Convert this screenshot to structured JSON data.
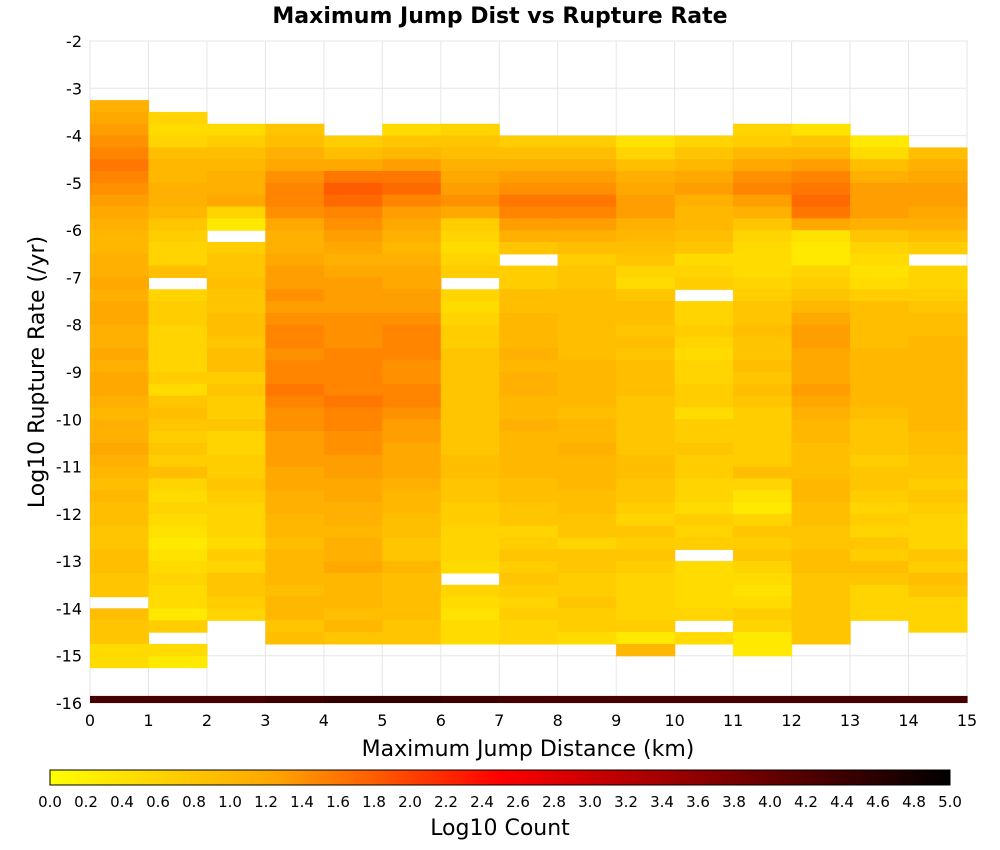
{
  "chart_data": {
    "type": "heatmap",
    "title": "Maximum Jump Dist vs Rupture Rate",
    "xlabel": "Maximum Jump Distance (km)",
    "ylabel": "Log10 Rupture Rate (/yr)",
    "colorbar_label": "Log10 Count",
    "xlim": [
      0,
      15
    ],
    "ylim": [
      -16,
      -2
    ],
    "x_ticks": [
      "0",
      "1",
      "2",
      "3",
      "4",
      "5",
      "6",
      "7",
      "8",
      "9",
      "10",
      "11",
      "12",
      "13",
      "14",
      "15"
    ],
    "y_ticks": [
      "-16",
      "-15",
      "-14",
      "-13",
      "-12",
      "-11",
      "-10",
      "-9",
      "-8",
      "-7",
      "-6",
      "-5",
      "-4",
      "-3",
      "-2"
    ],
    "colorbar_range": [
      0,
      5
    ],
    "colorbar_ticks": [
      "0.0",
      "0.2",
      "0.4",
      "0.6",
      "0.8",
      "1.0",
      "1.2",
      "1.4",
      "1.6",
      "1.8",
      "2.0",
      "2.2",
      "2.4",
      "2.6",
      "2.8",
      "3.0",
      "3.2",
      "3.4",
      "3.6",
      "3.8",
      "4.0",
      "4.2",
      "4.4",
      "4.6",
      "4.8",
      "5.0"
    ],
    "colormap": [
      "#ffff00",
      "#ffa500",
      "#ff0000",
      "#7f0000",
      "#000000"
    ],
    "cell_width_km": 1,
    "cell_height_log10": 0.25,
    "columns": [
      {
        "x0": 0,
        "top": -3.25,
        "values": [
          1.1,
          1.2,
          1.3,
          1.4,
          1.5,
          1.6,
          1.5,
          1.4,
          1.3,
          1.2,
          1.1,
          1.0,
          1.0,
          1.1,
          1.1,
          1.2,
          1.1,
          1.2,
          1.2,
          1.1,
          1.1,
          1.2,
          1.1,
          1.2,
          1.2,
          1.1,
          1.0,
          1.1,
          1.1,
          1.2,
          1.1,
          1.0,
          0.9,
          1.0,
          0.9,
          0.9,
          0.8,
          0.8,
          0.9,
          0.9,
          0.8,
          0.8,
          null,
          0.9,
          0.8,
          0.8,
          0.5,
          0.5
        ]
      },
      {
        "x0": 1,
        "top": -3.5,
        "values": [
          0.6,
          0.5,
          0.6,
          0.9,
          1.0,
          1.0,
          1.1,
          1.1,
          1.0,
          0.8,
          0.7,
          0.6,
          0.6,
          0.9,
          null,
          0.6,
          0.7,
          0.7,
          0.6,
          0.6,
          0.6,
          0.6,
          0.7,
          0.5,
          0.8,
          0.9,
          0.8,
          0.7,
          0.8,
          0.7,
          0.9,
          0.6,
          0.5,
          0.6,
          0.5,
          0.4,
          0.3,
          0.4,
          0.5,
          0.6,
          0.5,
          0.5,
          0.3,
          0.7,
          null,
          0.5,
          0.3
        ]
      },
      {
        "x0": 2,
        "top": -3.75,
        "values": [
          0.5,
          0.7,
          0.9,
          1.0,
          1.1,
          1.1,
          1.2,
          0.6,
          0.3,
          null,
          0.7,
          0.8,
          0.8,
          0.9,
          0.8,
          0.8,
          0.9,
          0.9,
          0.8,
          0.9,
          0.9,
          0.7,
          0.8,
          0.7,
          0.7,
          0.8,
          0.6,
          0.6,
          0.7,
          0.7,
          0.8,
          0.7,
          0.6,
          0.6,
          0.6,
          0.5,
          0.7,
          0.6,
          0.8,
          0.8,
          0.7,
          0.6,
          null
        ]
      },
      {
        "x0": 3,
        "top": -3.75,
        "values": [
          0.8,
          0.9,
          1.1,
          1.2,
          1.4,
          1.5,
          1.5,
          1.4,
          1.2,
          1.1,
          1.1,
          1.2,
          1.3,
          1.3,
          1.4,
          1.3,
          1.4,
          1.5,
          1.5,
          1.4,
          1.5,
          1.5,
          1.6,
          1.5,
          1.4,
          1.4,
          1.3,
          1.3,
          1.3,
          1.2,
          1.2,
          1.1,
          1.1,
          1.0,
          1.0,
          0.9,
          1.0,
          1.0,
          1.0,
          0.9,
          1.0,
          1.0,
          0.8,
          0.9
        ]
      },
      {
        "x0": 4,
        "top": -4.0,
        "values": [
          0.7,
          0.9,
          1.2,
          1.6,
          1.8,
          1.7,
          1.5,
          1.4,
          1.3,
          1.2,
          1.1,
          1.2,
          1.3,
          1.3,
          1.3,
          1.4,
          1.4,
          1.4,
          1.5,
          1.5,
          1.5,
          1.5,
          1.6,
          1.5,
          1.5,
          1.4,
          1.4,
          1.3,
          1.3,
          1.2,
          1.2,
          1.1,
          1.1,
          1.0,
          1.1,
          1.1,
          1.2,
          1.0,
          1.0,
          1.0,
          0.9,
          1.0,
          0.8
        ]
      },
      {
        "x0": 5,
        "top": -3.75,
        "values": [
          0.5,
          0.8,
          1.0,
          1.3,
          1.6,
          1.7,
          1.5,
          1.3,
          1.2,
          1.1,
          1.0,
          1.1,
          1.2,
          1.2,
          1.3,
          1.3,
          1.4,
          1.5,
          1.5,
          1.5,
          1.4,
          1.4,
          1.5,
          1.5,
          1.4,
          1.3,
          1.3,
          1.2,
          1.2,
          1.2,
          1.1,
          1.0,
          1.0,
          0.9,
          0.9,
          0.8,
          0.8,
          1.0,
          0.9,
          0.9,
          0.9,
          0.9,
          0.8,
          0.8
        ]
      },
      {
        "x0": 6,
        "top": -3.75,
        "values": [
          0.6,
          0.8,
          0.9,
          1.1,
          1.2,
          1.3,
          1.4,
          1.2,
          0.7,
          0.6,
          0.5,
          0.6,
          0.7,
          null,
          0.6,
          0.5,
          0.6,
          0.7,
          0.7,
          0.8,
          0.8,
          0.8,
          0.8,
          0.8,
          0.8,
          0.8,
          0.8,
          0.8,
          0.9,
          0.9,
          0.8,
          0.8,
          0.7,
          0.7,
          0.6,
          0.6,
          0.6,
          0.5,
          null,
          0.6,
          0.5,
          0.4,
          0.5,
          0.5
        ]
      },
      {
        "x0": 7,
        "top": -4.0,
        "values": [
          0.7,
          0.9,
          1.1,
          1.3,
          1.4,
          1.6,
          1.5,
          1.3,
          1.1,
          0.8,
          null,
          0.7,
          0.7,
          0.9,
          0.9,
          1.0,
          1.0,
          1.0,
          1.1,
          1.0,
          1.1,
          1.1,
          1.0,
          1.0,
          1.1,
          1.0,
          1.0,
          1.0,
          1.0,
          0.9,
          0.9,
          0.8,
          0.8,
          0.6,
          0.7,
          0.8,
          0.7,
          0.8,
          0.7,
          0.6,
          0.7,
          0.6,
          0.6
        ]
      },
      {
        "x0": 8,
        "top": -4.0,
        "values": [
          0.7,
          0.9,
          1.1,
          1.3,
          1.4,
          1.6,
          1.5,
          1.3,
          1.1,
          0.9,
          0.7,
          0.8,
          0.8,
          0.9,
          0.9,
          0.9,
          0.9,
          0.9,
          0.9,
          1.0,
          1.0,
          1.0,
          1.0,
          0.9,
          1.0,
          1.0,
          1.1,
          1.0,
          1.0,
          1.0,
          0.9,
          0.9,
          0.8,
          0.8,
          0.6,
          0.8,
          0.8,
          0.7,
          0.7,
          0.8,
          0.7,
          0.7,
          0.5
        ]
      },
      {
        "x0": 9,
        "top": -4.0,
        "values": [
          0.4,
          0.6,
          0.9,
          1.1,
          1.2,
          1.3,
          1.3,
          1.1,
          1.0,
          0.9,
          0.8,
          0.6,
          0.5,
          0.8,
          0.9,
          0.9,
          0.8,
          0.9,
          0.8,
          0.9,
          0.9,
          0.9,
          0.8,
          0.8,
          0.8,
          0.8,
          0.8,
          0.9,
          0.9,
          0.8,
          0.8,
          0.7,
          0.6,
          0.8,
          0.7,
          0.8,
          0.7,
          0.6,
          0.6,
          0.6,
          0.6,
          0.7,
          0.3,
          1.0
        ]
      },
      {
        "x0": 10,
        "top": -4.0,
        "values": [
          0.6,
          0.8,
          1.0,
          1.2,
          1.3,
          1.1,
          1.0,
          1.0,
          0.9,
          0.8,
          0.5,
          0.6,
          0.7,
          null,
          0.6,
          0.6,
          0.7,
          0.6,
          0.5,
          0.6,
          0.6,
          0.7,
          0.7,
          0.5,
          0.7,
          0.7,
          0.8,
          0.7,
          0.7,
          0.6,
          0.6,
          0.5,
          0.7,
          0.6,
          0.7,
          null,
          0.5,
          0.5,
          0.5,
          0.5,
          0.6,
          null,
          0.5
        ]
      },
      {
        "x0": 11,
        "top": -3.75,
        "values": [
          0.6,
          0.7,
          1.0,
          1.2,
          1.4,
          1.5,
          1.3,
          1.1,
          0.8,
          0.6,
          0.5,
          0.5,
          0.5,
          0.6,
          0.7,
          0.8,
          0.8,
          0.9,
          0.8,
          0.8,
          0.9,
          0.8,
          0.9,
          0.8,
          0.7,
          0.7,
          0.7,
          0.7,
          0.7,
          0.9,
          0.6,
          0.4,
          0.3,
          0.6,
          0.8,
          0.7,
          0.8,
          0.6,
          0.5,
          0.4,
          0.5,
          0.7,
          0.6,
          0.3,
          0.3
        ]
      },
      {
        "x0": 12,
        "top": -3.75,
        "values": [
          0.4,
          0.8,
          1.0,
          1.3,
          1.5,
          1.6,
          1.7,
          1.6,
          1.2,
          0.4,
          0.3,
          0.3,
          0.6,
          0.7,
          0.8,
          1.0,
          1.2,
          1.3,
          1.3,
          1.2,
          1.2,
          1.2,
          1.3,
          1.2,
          1.1,
          1.0,
          1.0,
          0.9,
          0.9,
          0.9,
          1.0,
          1.0,
          0.9,
          0.9,
          0.8,
          0.8,
          0.9,
          0.9,
          0.8,
          0.8,
          0.8,
          0.8,
          0.8,
          0.8
        ]
      },
      {
        "x0": 13,
        "top": -4.0,
        "values": [
          0.3,
          0.5,
          0.9,
          1.1,
          1.3,
          1.3,
          1.3,
          1.1,
          0.8,
          0.6,
          0.5,
          0.4,
          0.5,
          0.7,
          0.9,
          0.9,
          0.9,
          0.9,
          1.0,
          1.0,
          1.0,
          1.0,
          1.0,
          0.9,
          0.8,
          0.8,
          0.8,
          0.7,
          0.8,
          0.8,
          0.7,
          0.6,
          0.7,
          0.6,
          0.8,
          0.7,
          0.9,
          0.8,
          0.6,
          0.6,
          0.6,
          null
        ]
      },
      {
        "x0": 14,
        "top": -4.25,
        "values": [
          0.9,
          1.1,
          1.2,
          1.3,
          1.3,
          1.2,
          1.1,
          0.9,
          0.7,
          null,
          0.6,
          0.6,
          0.7,
          0.8,
          0.9,
          0.9,
          1.0,
          1.0,
          1.0,
          1.0,
          1.0,
          1.0,
          1.0,
          1.0,
          0.9,
          0.9,
          0.8,
          0.8,
          0.7,
          0.8,
          0.7,
          0.6,
          0.6,
          0.6,
          0.8,
          0.7,
          0.9,
          0.8,
          0.6,
          0.6,
          0.6,
          null
        ]
      }
    ],
    "bottom_row": {
      "y0": -16,
      "y1": -15.85,
      "values": [
        4.3,
        4.3,
        4.3,
        4.4,
        4.5,
        4.5,
        4.4,
        4.3,
        4.3,
        4.3,
        4.3,
        4.3,
        4.3,
        4.3,
        4.3
      ]
    }
  }
}
